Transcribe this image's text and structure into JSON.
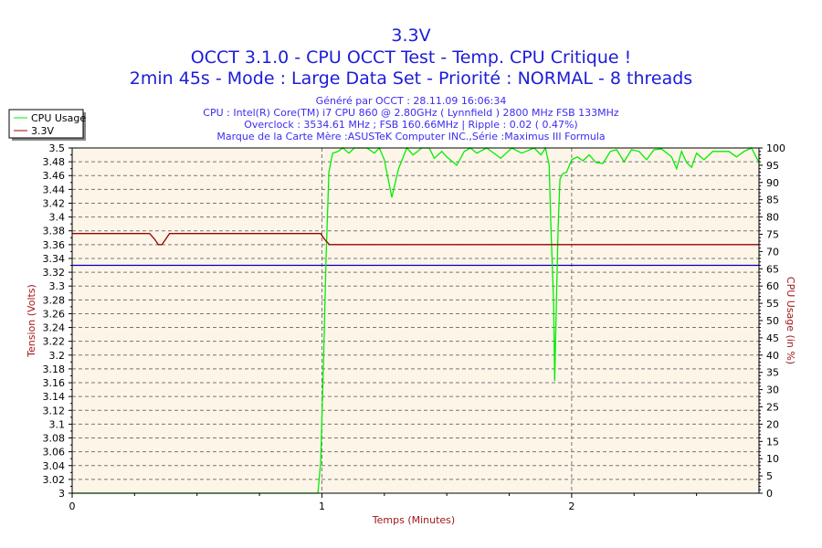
{
  "header": {
    "title": "3.3V",
    "subtitle1": "OCCT 3.1.0 - CPU OCCT Test - Temp. CPU Critique !",
    "subtitle2": "2min 45s - Mode : Large Data Set - Priorité : NORMAL - 8 threads",
    "info": [
      "Généré par OCCT : 28.11.09 16:06:34",
      "CPU : Intel(R) Core(TM) i7 CPU 860 @ 2.80GHz ( Lynnfield ) 2800 MHz FSB 133MHz",
      "Overclock : 3534.61 MHz ; FSB 160.66MHz | Ripple : 0.02 ( 0.47%)",
      "Marque de la Carte Mère :ASUSTeK Computer INC.,Série :Maximus III Formula"
    ]
  },
  "chart_data": {
    "type": "line",
    "xlabel": "Temps (Minutes)",
    "ylabel": "Tension (Volts)",
    "y2label": "CPU Usage (in %)",
    "xlim": [
      0,
      2.75
    ],
    "ylim": [
      3.0,
      3.5
    ],
    "y2lim": [
      0,
      100
    ],
    "xticks": [
      "0",
      "1",
      "2"
    ],
    "yticks": [
      "3",
      "3.02",
      "3.04",
      "3.06",
      "3.08",
      "3.1",
      "3.12",
      "3.14",
      "3.16",
      "3.18",
      "3.2",
      "3.22",
      "3.24",
      "3.26",
      "3.28",
      "3.3",
      "3.32",
      "3.34",
      "3.36",
      "3.38",
      "3.4",
      "3.42",
      "3.44",
      "3.46",
      "3.48",
      "3.5"
    ],
    "y2ticks": [
      "0",
      "5",
      "10",
      "15",
      "20",
      "25",
      "30",
      "35",
      "40",
      "45",
      "50",
      "55",
      "60",
      "65",
      "70",
      "75",
      "80",
      "85",
      "90",
      "95",
      "100"
    ],
    "grid": true,
    "legend_position": "top-left",
    "background": "#fdf6e8",
    "series": [
      {
        "name": "CPU Usage",
        "axis": "right",
        "color": "#00ee00",
        "x": [
          0,
          0.984,
          0.995,
          1.006,
          1.017,
          1.028,
          1.043,
          1.065,
          1.083,
          1.108,
          1.13,
          1.18,
          1.21,
          1.23,
          1.25,
          1.28,
          1.307,
          1.34,
          1.365,
          1.4,
          1.43,
          1.45,
          1.48,
          1.5,
          1.54,
          1.57,
          1.595,
          1.62,
          1.66,
          1.716,
          1.76,
          1.8,
          1.85,
          1.877,
          1.895,
          1.91,
          1.917,
          1.928,
          1.932,
          1.939,
          1.946,
          1.953,
          1.965,
          1.98,
          2.0,
          2.023,
          2.045,
          2.07,
          2.097,
          2.125,
          2.155,
          2.18,
          2.21,
          2.24,
          2.27,
          2.3,
          2.33,
          2.36,
          2.4,
          2.42,
          2.44,
          2.46,
          2.48,
          2.5,
          2.53,
          2.565,
          2.6,
          2.63,
          2.66,
          2.69,
          2.72,
          2.75
        ],
        "y": [
          0,
          0,
          9,
          37,
          69,
          93,
          98.5,
          99,
          100,
          98.5,
          100,
          100,
          98.5,
          100,
          96.6,
          85.7,
          94,
          100,
          98,
          100,
          100,
          97,
          99,
          97.4,
          95,
          99,
          100,
          98.5,
          100,
          97,
          100,
          98.5,
          100,
          98,
          100,
          95,
          77,
          55,
          32.5,
          55,
          77,
          91,
          92.6,
          93,
          96.6,
          97.4,
          96.3,
          98,
          95.8,
          95.5,
          99,
          99.5,
          96,
          99.5,
          99,
          96.6,
          99.5,
          99.7,
          97.4,
          94,
          99,
          95.8,
          94.4,
          98.5,
          96.6,
          99,
          99,
          99,
          97.4,
          99,
          100,
          95.8
        ]
      },
      {
        "name": "3.3V",
        "axis": "left",
        "color": "#a00000",
        "x": [
          0,
          0.31,
          0.33,
          0.345,
          0.36,
          0.375,
          0.39,
          0.995,
          1.01,
          1.03,
          2.75
        ],
        "y": [
          3.376,
          3.376,
          3.368,
          3.36,
          3.36,
          3.368,
          3.376,
          3.376,
          3.368,
          3.36,
          3.36
        ]
      }
    ],
    "reference_line": {
      "y": 3.33,
      "color": "#0000c0"
    }
  }
}
